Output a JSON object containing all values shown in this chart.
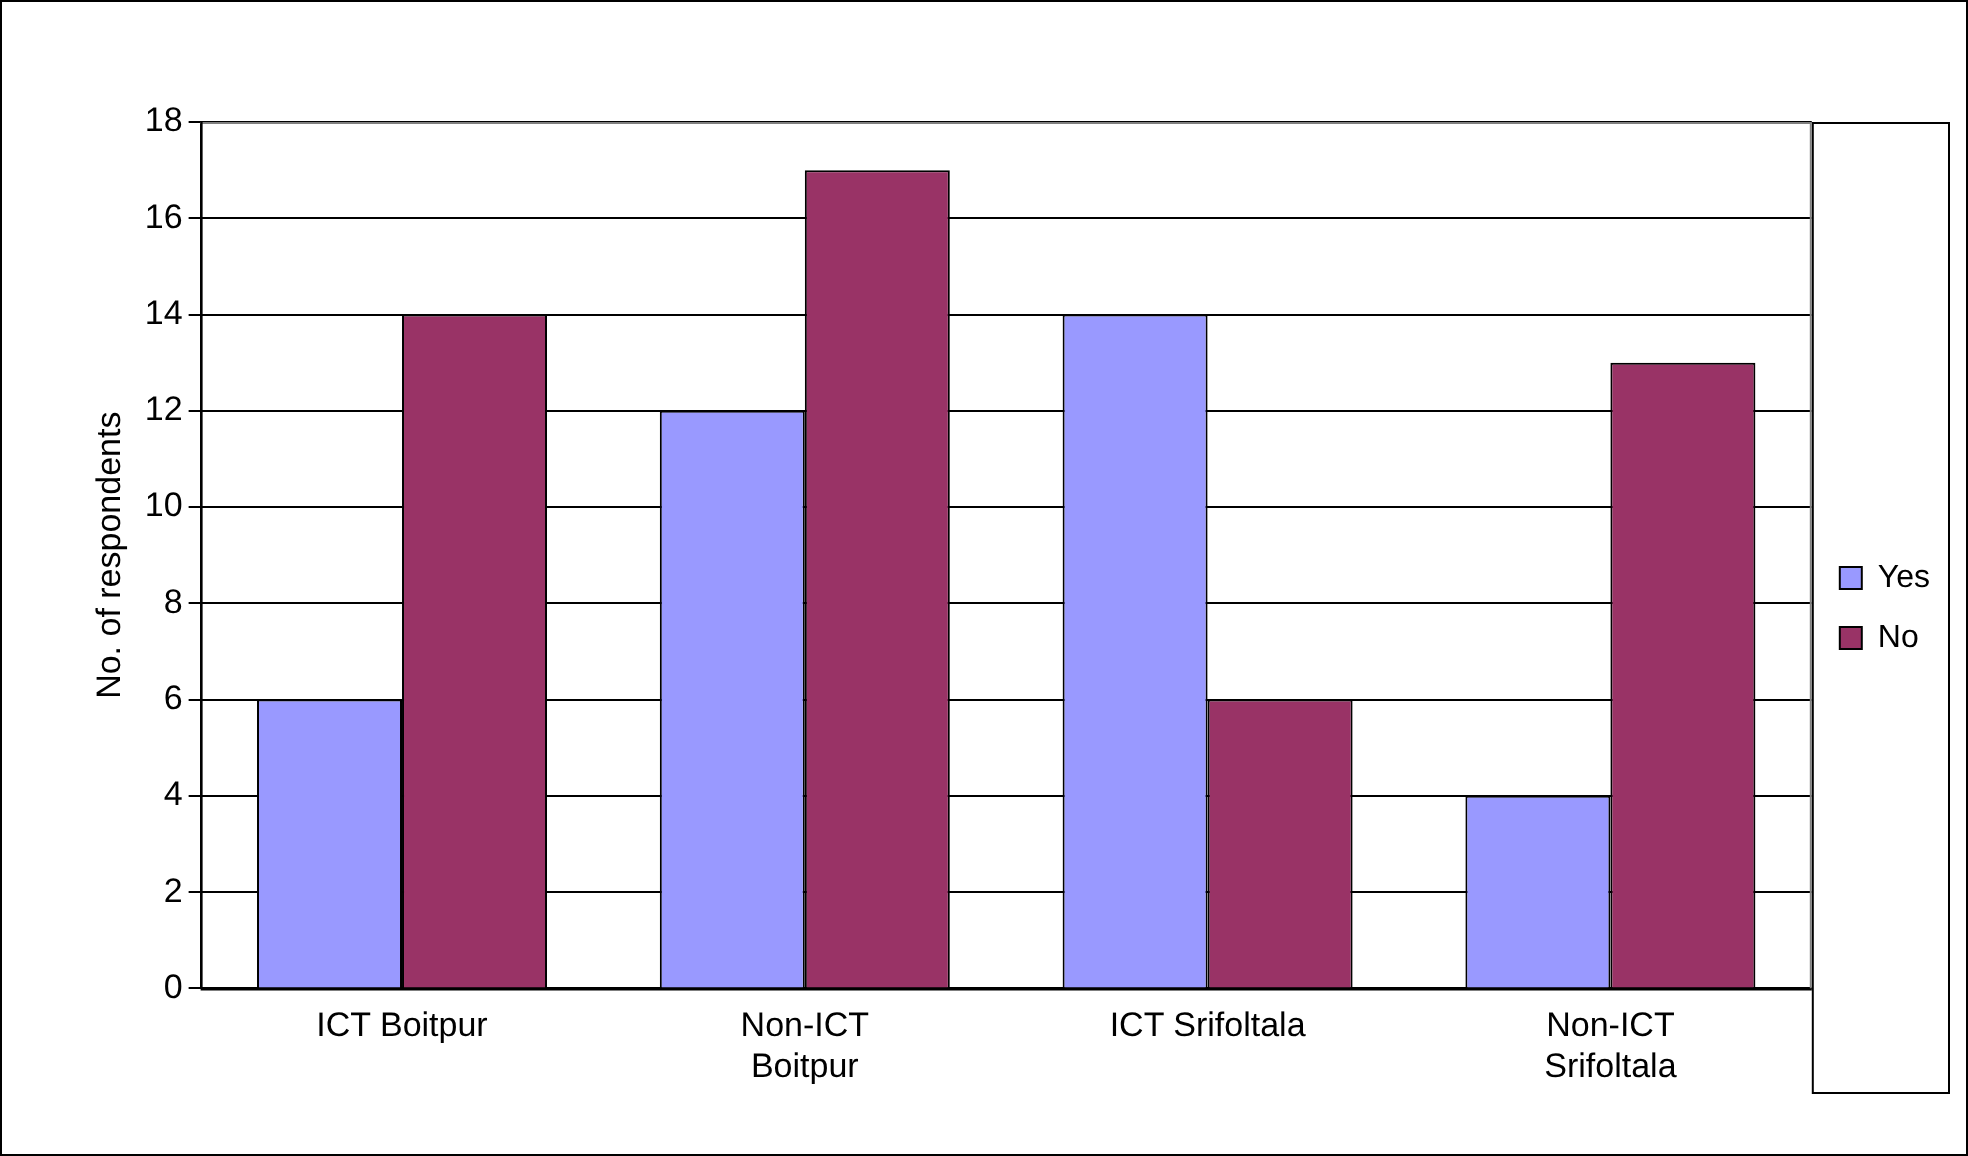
{
  "chart_data": {
    "type": "bar",
    "ylabel": "No. of respondents",
    "categories": [
      "ICT Boitpur",
      "Non-ICT Boitpur",
      "ICT Srifoltala",
      "Non-ICT Srifoltala"
    ],
    "series": [
      {
        "name": "Yes",
        "color": "#9999ff",
        "values": [
          6,
          12,
          14,
          4
        ]
      },
      {
        "name": "No",
        "color": "#993366",
        "values": [
          14,
          17,
          6,
          13
        ]
      }
    ],
    "ylim": [
      0,
      18
    ],
    "yticks": [
      0,
      2,
      4,
      6,
      8,
      10,
      12,
      14,
      16,
      18
    ],
    "grid": "y",
    "legend": "right"
  }
}
